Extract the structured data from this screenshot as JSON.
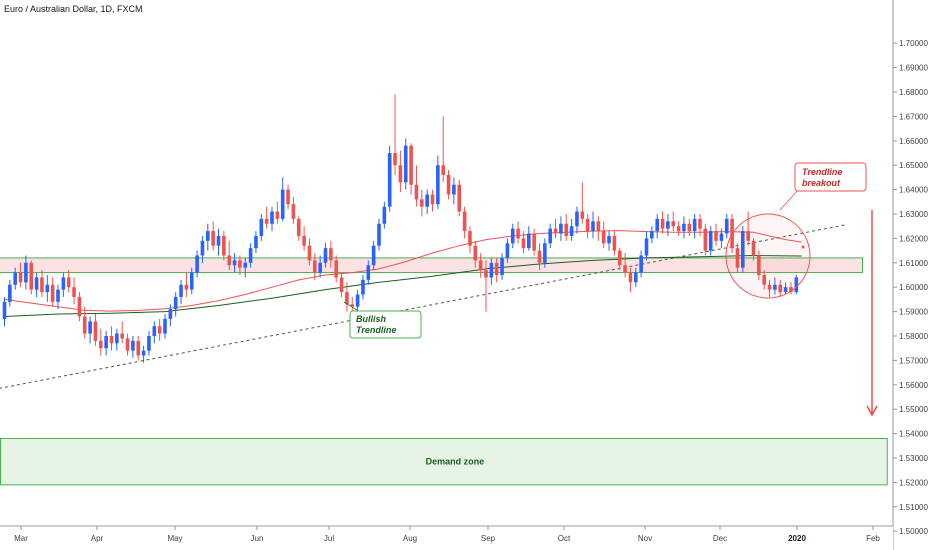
{
  "chart_data": {
    "type": "candlestick",
    "title": "Euro / Australian Dollar, 1D, FXCM",
    "ylim": [
      1.495,
      1.715
    ],
    "y_ticks": [
      "1.70000",
      "1.69000",
      "1.68000",
      "1.67000",
      "1.66000",
      "1.65000",
      "1.64000",
      "1.63000",
      "1.62000",
      "1.61000",
      "1.60000",
      "1.59000",
      "1.58000",
      "1.57000",
      "1.56000",
      "1.55000",
      "1.54000",
      "1.53000",
      "1.52000",
      "1.51000",
      "1.50000"
    ],
    "x_ticks": [
      {
        "label": "Mar",
        "bold": false
      },
      {
        "label": "Apr",
        "bold": false
      },
      {
        "label": "May",
        "bold": false
      },
      {
        "label": "Jun",
        "bold": false
      },
      {
        "label": "Jul",
        "bold": false
      },
      {
        "label": "Aug",
        "bold": false
      },
      {
        "label": "Sep",
        "bold": false
      },
      {
        "label": "Oct",
        "bold": false
      },
      {
        "label": "Nov",
        "bold": false
      },
      {
        "label": "Dec",
        "bold": false
      },
      {
        "label": "2020",
        "bold": true
      },
      {
        "label": "Feb",
        "bold": false
      }
    ],
    "colors": {
      "up": "#2962ff",
      "down": "#ef5350",
      "ma_fast": "#ef5350",
      "ma_slow": "#1b5e20",
      "trendline": "#555555",
      "resistance_fill": "#fbe3e4",
      "resistance_stroke": "#4caf50",
      "demand_fill": "#e6f4e6",
      "demand_stroke": "#4caf50",
      "arrow": "#e53935"
    },
    "candles": [
      {
        "o": 1.587,
        "h": 1.596,
        "l": 1.584,
        "c": 1.594
      },
      {
        "o": 1.594,
        "h": 1.603,
        "l": 1.592,
        "c": 1.601
      },
      {
        "o": 1.601,
        "h": 1.608,
        "l": 1.599,
        "c": 1.606
      },
      {
        "o": 1.606,
        "h": 1.61,
        "l": 1.6,
        "c": 1.602
      },
      {
        "o": 1.602,
        "h": 1.613,
        "l": 1.599,
        "c": 1.61
      },
      {
        "o": 1.61,
        "h": 1.611,
        "l": 1.597,
        "c": 1.599
      },
      {
        "o": 1.599,
        "h": 1.606,
        "l": 1.596,
        "c": 1.604
      },
      {
        "o": 1.604,
        "h": 1.607,
        "l": 1.596,
        "c": 1.598
      },
      {
        "o": 1.598,
        "h": 1.605,
        "l": 1.594,
        "c": 1.601
      },
      {
        "o": 1.601,
        "h": 1.604,
        "l": 1.592,
        "c": 1.594
      },
      {
        "o": 1.594,
        "h": 1.601,
        "l": 1.591,
        "c": 1.599
      },
      {
        "o": 1.599,
        "h": 1.606,
        "l": 1.596,
        "c": 1.604
      },
      {
        "o": 1.604,
        "h": 1.607,
        "l": 1.598,
        "c": 1.6
      },
      {
        "o": 1.6,
        "h": 1.604,
        "l": 1.593,
        "c": 1.596
      },
      {
        "o": 1.596,
        "h": 1.598,
        "l": 1.586,
        "c": 1.588
      },
      {
        "o": 1.588,
        "h": 1.592,
        "l": 1.579,
        "c": 1.581
      },
      {
        "o": 1.581,
        "h": 1.588,
        "l": 1.577,
        "c": 1.586
      },
      {
        "o": 1.586,
        "h": 1.589,
        "l": 1.576,
        "c": 1.578
      },
      {
        "o": 1.578,
        "h": 1.583,
        "l": 1.572,
        "c": 1.575
      },
      {
        "o": 1.575,
        "h": 1.582,
        "l": 1.572,
        "c": 1.58
      },
      {
        "o": 1.58,
        "h": 1.584,
        "l": 1.574,
        "c": 1.577
      },
      {
        "o": 1.577,
        "h": 1.583,
        "l": 1.574,
        "c": 1.581
      },
      {
        "o": 1.581,
        "h": 1.586,
        "l": 1.577,
        "c": 1.579
      },
      {
        "o": 1.579,
        "h": 1.581,
        "l": 1.572,
        "c": 1.574
      },
      {
        "o": 1.574,
        "h": 1.58,
        "l": 1.571,
        "c": 1.578
      },
      {
        "o": 1.578,
        "h": 1.58,
        "l": 1.57,
        "c": 1.572
      },
      {
        "o": 1.572,
        "h": 1.576,
        "l": 1.569,
        "c": 1.574
      },
      {
        "o": 1.574,
        "h": 1.582,
        "l": 1.572,
        "c": 1.58
      },
      {
        "o": 1.58,
        "h": 1.586,
        "l": 1.577,
        "c": 1.584
      },
      {
        "o": 1.584,
        "h": 1.587,
        "l": 1.578,
        "c": 1.581
      },
      {
        "o": 1.581,
        "h": 1.589,
        "l": 1.579,
        "c": 1.587
      },
      {
        "o": 1.587,
        "h": 1.593,
        "l": 1.584,
        "c": 1.591
      },
      {
        "o": 1.591,
        "h": 1.598,
        "l": 1.588,
        "c": 1.596
      },
      {
        "o": 1.596,
        "h": 1.603,
        "l": 1.593,
        "c": 1.601
      },
      {
        "o": 1.601,
        "h": 1.606,
        "l": 1.596,
        "c": 1.599
      },
      {
        "o": 1.599,
        "h": 1.608,
        "l": 1.597,
        "c": 1.606
      },
      {
        "o": 1.606,
        "h": 1.615,
        "l": 1.604,
        "c": 1.613
      },
      {
        "o": 1.613,
        "h": 1.621,
        "l": 1.61,
        "c": 1.619
      },
      {
        "o": 1.619,
        "h": 1.626,
        "l": 1.615,
        "c": 1.623
      },
      {
        "o": 1.623,
        "h": 1.627,
        "l": 1.615,
        "c": 1.617
      },
      {
        "o": 1.617,
        "h": 1.624,
        "l": 1.613,
        "c": 1.621
      },
      {
        "o": 1.621,
        "h": 1.623,
        "l": 1.611,
        "c": 1.613
      },
      {
        "o": 1.613,
        "h": 1.619,
        "l": 1.607,
        "c": 1.609
      },
      {
        "o": 1.609,
        "h": 1.614,
        "l": 1.606,
        "c": 1.611
      },
      {
        "o": 1.611,
        "h": 1.613,
        "l": 1.605,
        "c": 1.608
      },
      {
        "o": 1.608,
        "h": 1.612,
        "l": 1.604,
        "c": 1.61
      },
      {
        "o": 1.61,
        "h": 1.618,
        "l": 1.608,
        "c": 1.616
      },
      {
        "o": 1.616,
        "h": 1.623,
        "l": 1.614,
        "c": 1.621
      },
      {
        "o": 1.621,
        "h": 1.63,
        "l": 1.619,
        "c": 1.628
      },
      {
        "o": 1.628,
        "h": 1.633,
        "l": 1.624,
        "c": 1.626
      },
      {
        "o": 1.626,
        "h": 1.633,
        "l": 1.623,
        "c": 1.631
      },
      {
        "o": 1.631,
        "h": 1.635,
        "l": 1.626,
        "c": 1.628
      },
      {
        "o": 1.628,
        "h": 1.645,
        "l": 1.627,
        "c": 1.64
      },
      {
        "o": 1.64,
        "h": 1.642,
        "l": 1.632,
        "c": 1.634
      },
      {
        "o": 1.634,
        "h": 1.637,
        "l": 1.626,
        "c": 1.628
      },
      {
        "o": 1.628,
        "h": 1.629,
        "l": 1.619,
        "c": 1.621
      },
      {
        "o": 1.621,
        "h": 1.625,
        "l": 1.615,
        "c": 1.617
      },
      {
        "o": 1.617,
        "h": 1.62,
        "l": 1.609,
        "c": 1.611
      },
      {
        "o": 1.611,
        "h": 1.614,
        "l": 1.603,
        "c": 1.606
      },
      {
        "o": 1.606,
        "h": 1.613,
        "l": 1.604,
        "c": 1.61
      },
      {
        "o": 1.61,
        "h": 1.618,
        "l": 1.608,
        "c": 1.616
      },
      {
        "o": 1.616,
        "h": 1.619,
        "l": 1.608,
        "c": 1.611
      },
      {
        "o": 1.611,
        "h": 1.613,
        "l": 1.602,
        "c": 1.604
      },
      {
        "o": 1.604,
        "h": 1.606,
        "l": 1.596,
        "c": 1.598
      },
      {
        "o": 1.598,
        "h": 1.602,
        "l": 1.59,
        "c": 1.593
      },
      {
        "o": 1.593,
        "h": 1.596,
        "l": 1.589,
        "c": 1.592
      },
      {
        "o": 1.592,
        "h": 1.599,
        "l": 1.59,
        "c": 1.597
      },
      {
        "o": 1.597,
        "h": 1.605,
        "l": 1.595,
        "c": 1.603
      },
      {
        "o": 1.603,
        "h": 1.611,
        "l": 1.601,
        "c": 1.609
      },
      {
        "o": 1.609,
        "h": 1.619,
        "l": 1.607,
        "c": 1.617
      },
      {
        "o": 1.617,
        "h": 1.628,
        "l": 1.615,
        "c": 1.626
      },
      {
        "o": 1.626,
        "h": 1.635,
        "l": 1.624,
        "c": 1.633
      },
      {
        "o": 1.633,
        "h": 1.658,
        "l": 1.631,
        "c": 1.655
      },
      {
        "o": 1.655,
        "h": 1.679,
        "l": 1.646,
        "c": 1.65
      },
      {
        "o": 1.65,
        "h": 1.656,
        "l": 1.639,
        "c": 1.643
      },
      {
        "o": 1.643,
        "h": 1.661,
        "l": 1.64,
        "c": 1.658
      },
      {
        "o": 1.658,
        "h": 1.659,
        "l": 1.638,
        "c": 1.642
      },
      {
        "o": 1.642,
        "h": 1.65,
        "l": 1.633,
        "c": 1.636
      },
      {
        "o": 1.636,
        "h": 1.64,
        "l": 1.629,
        "c": 1.633
      },
      {
        "o": 1.633,
        "h": 1.64,
        "l": 1.63,
        "c": 1.638
      },
      {
        "o": 1.638,
        "h": 1.64,
        "l": 1.631,
        "c": 1.634
      },
      {
        "o": 1.634,
        "h": 1.654,
        "l": 1.632,
        "c": 1.65
      },
      {
        "o": 1.65,
        "h": 1.67,
        "l": 1.643,
        "c": 1.646
      },
      {
        "o": 1.646,
        "h": 1.648,
        "l": 1.636,
        "c": 1.638
      },
      {
        "o": 1.638,
        "h": 1.645,
        "l": 1.634,
        "c": 1.642
      },
      {
        "o": 1.642,
        "h": 1.644,
        "l": 1.629,
        "c": 1.631
      },
      {
        "o": 1.631,
        "h": 1.633,
        "l": 1.62,
        "c": 1.623
      },
      {
        "o": 1.623,
        "h": 1.625,
        "l": 1.614,
        "c": 1.617
      },
      {
        "o": 1.617,
        "h": 1.619,
        "l": 1.608,
        "c": 1.611
      },
      {
        "o": 1.611,
        "h": 1.614,
        "l": 1.604,
        "c": 1.607
      },
      {
        "o": 1.607,
        "h": 1.611,
        "l": 1.59,
        "c": 1.604
      },
      {
        "o": 1.604,
        "h": 1.612,
        "l": 1.601,
        "c": 1.61
      },
      {
        "o": 1.61,
        "h": 1.612,
        "l": 1.602,
        "c": 1.605
      },
      {
        "o": 1.605,
        "h": 1.614,
        "l": 1.603,
        "c": 1.612
      },
      {
        "o": 1.612,
        "h": 1.62,
        "l": 1.61,
        "c": 1.618
      },
      {
        "o": 1.618,
        "h": 1.626,
        "l": 1.616,
        "c": 1.624
      },
      {
        "o": 1.624,
        "h": 1.627,
        "l": 1.618,
        "c": 1.62
      },
      {
        "o": 1.62,
        "h": 1.623,
        "l": 1.614,
        "c": 1.616
      },
      {
        "o": 1.616,
        "h": 1.625,
        "l": 1.615,
        "c": 1.622
      },
      {
        "o": 1.622,
        "h": 1.624,
        "l": 1.613,
        "c": 1.615
      },
      {
        "o": 1.615,
        "h": 1.618,
        "l": 1.607,
        "c": 1.61
      },
      {
        "o": 1.61,
        "h": 1.62,
        "l": 1.608,
        "c": 1.618
      },
      {
        "o": 1.618,
        "h": 1.626,
        "l": 1.616,
        "c": 1.624
      },
      {
        "o": 1.624,
        "h": 1.628,
        "l": 1.62,
        "c": 1.622
      },
      {
        "o": 1.622,
        "h": 1.629,
        "l": 1.619,
        "c": 1.626
      },
      {
        "o": 1.626,
        "h": 1.63,
        "l": 1.619,
        "c": 1.621
      },
      {
        "o": 1.621,
        "h": 1.628,
        "l": 1.619,
        "c": 1.625
      },
      {
        "o": 1.625,
        "h": 1.633,
        "l": 1.622,
        "c": 1.631
      },
      {
        "o": 1.631,
        "h": 1.643,
        "l": 1.626,
        "c": 1.628
      },
      {
        "o": 1.628,
        "h": 1.63,
        "l": 1.62,
        "c": 1.623
      },
      {
        "o": 1.623,
        "h": 1.631,
        "l": 1.62,
        "c": 1.627
      },
      {
        "o": 1.627,
        "h": 1.629,
        "l": 1.619,
        "c": 1.623
      },
      {
        "o": 1.623,
        "h": 1.627,
        "l": 1.616,
        "c": 1.618
      },
      {
        "o": 1.618,
        "h": 1.623,
        "l": 1.615,
        "c": 1.621
      },
      {
        "o": 1.621,
        "h": 1.623,
        "l": 1.613,
        "c": 1.615
      },
      {
        "o": 1.615,
        "h": 1.616,
        "l": 1.607,
        "c": 1.609
      },
      {
        "o": 1.609,
        "h": 1.614,
        "l": 1.604,
        "c": 1.606
      },
      {
        "o": 1.606,
        "h": 1.608,
        "l": 1.598,
        "c": 1.602
      },
      {
        "o": 1.602,
        "h": 1.608,
        "l": 1.6,
        "c": 1.606
      },
      {
        "o": 1.606,
        "h": 1.615,
        "l": 1.604,
        "c": 1.613
      },
      {
        "o": 1.613,
        "h": 1.623,
        "l": 1.611,
        "c": 1.62
      },
      {
        "o": 1.62,
        "h": 1.625,
        "l": 1.618,
        "c": 1.623
      },
      {
        "o": 1.623,
        "h": 1.63,
        "l": 1.62,
        "c": 1.628
      },
      {
        "o": 1.628,
        "h": 1.631,
        "l": 1.622,
        "c": 1.624
      },
      {
        "o": 1.624,
        "h": 1.63,
        "l": 1.621,
        "c": 1.627
      },
      {
        "o": 1.627,
        "h": 1.631,
        "l": 1.623,
        "c": 1.625
      },
      {
        "o": 1.625,
        "h": 1.627,
        "l": 1.621,
        "c": 1.623
      },
      {
        "o": 1.623,
        "h": 1.629,
        "l": 1.62,
        "c": 1.626
      },
      {
        "o": 1.626,
        "h": 1.628,
        "l": 1.621,
        "c": 1.623
      },
      {
        "o": 1.623,
        "h": 1.63,
        "l": 1.62,
        "c": 1.628
      },
      {
        "o": 1.628,
        "h": 1.63,
        "l": 1.621,
        "c": 1.624
      },
      {
        "o": 1.624,
        "h": 1.626,
        "l": 1.613,
        "c": 1.615
      },
      {
        "o": 1.615,
        "h": 1.625,
        "l": 1.613,
        "c": 1.623
      },
      {
        "o": 1.623,
        "h": 1.626,
        "l": 1.617,
        "c": 1.619
      },
      {
        "o": 1.619,
        "h": 1.624,
        "l": 1.616,
        "c": 1.622
      },
      {
        "o": 1.622,
        "h": 1.63,
        "l": 1.62,
        "c": 1.628
      },
      {
        "o": 1.628,
        "h": 1.63,
        "l": 1.614,
        "c": 1.616
      },
      {
        "o": 1.616,
        "h": 1.618,
        "l": 1.606,
        "c": 1.608
      },
      {
        "o": 1.608,
        "h": 1.625,
        "l": 1.606,
        "c": 1.623
      },
      {
        "o": 1.623,
        "h": 1.631,
        "l": 1.617,
        "c": 1.619
      },
      {
        "o": 1.619,
        "h": 1.62,
        "l": 1.611,
        "c": 1.613
      },
      {
        "o": 1.613,
        "h": 1.615,
        "l": 1.603,
        "c": 1.605
      },
      {
        "o": 1.605,
        "h": 1.607,
        "l": 1.599,
        "c": 1.601
      },
      {
        "o": 1.601,
        "h": 1.603,
        "l": 1.596,
        "c": 1.599
      },
      {
        "o": 1.599,
        "h": 1.604,
        "l": 1.597,
        "c": 1.601
      },
      {
        "o": 1.601,
        "h": 1.603,
        "l": 1.596,
        "c": 1.598
      },
      {
        "o": 1.598,
        "h": 1.602,
        "l": 1.597,
        "c": 1.6
      },
      {
        "o": 1.6,
        "h": 1.602,
        "l": 1.597,
        "c": 1.598
      },
      {
        "o": 1.598,
        "h": 1.605,
        "l": 1.597,
        "c": 1.604
      }
    ],
    "ma_fast": [
      [
        0,
        1.595
      ],
      [
        5,
        1.5935
      ],
      [
        10,
        1.592
      ],
      [
        15,
        1.5905
      ],
      [
        20,
        1.5902
      ],
      [
        25,
        1.5905
      ],
      [
        30,
        1.5912
      ],
      [
        35,
        1.5925
      ],
      [
        40,
        1.5945
      ],
      [
        45,
        1.597
      ],
      [
        50,
        1.6
      ],
      [
        55,
        1.603
      ],
      [
        60,
        1.605
      ],
      [
        65,
        1.606
      ],
      [
        70,
        1.6075
      ],
      [
        75,
        1.6105
      ],
      [
        80,
        1.614
      ],
      [
        85,
        1.617
      ],
      [
        90,
        1.6195
      ],
      [
        95,
        1.621
      ],
      [
        100,
        1.622
      ],
      [
        105,
        1.6225
      ],
      [
        110,
        1.623
      ],
      [
        115,
        1.6232
      ],
      [
        120,
        1.6228
      ],
      [
        125,
        1.6225
      ],
      [
        130,
        1.6225
      ],
      [
        135,
        1.6228
      ],
      [
        140,
        1.6225
      ],
      [
        143,
        1.621
      ],
      [
        146,
        1.6195
      ],
      [
        149,
        1.6185
      ]
    ],
    "ma_slow": [
      [
        0,
        1.588
      ],
      [
        10,
        1.589
      ],
      [
        20,
        1.5893
      ],
      [
        30,
        1.59
      ],
      [
        40,
        1.5925
      ],
      [
        50,
        1.5955
      ],
      [
        60,
        1.599
      ],
      [
        70,
        1.602
      ],
      [
        80,
        1.6045
      ],
      [
        90,
        1.6075
      ],
      [
        100,
        1.6095
      ],
      [
        110,
        1.611
      ],
      [
        120,
        1.612
      ],
      [
        130,
        1.6125
      ],
      [
        140,
        1.613
      ],
      [
        149,
        1.6128
      ]
    ],
    "trendline": [
      [
        -1,
        1.5585
      ],
      [
        157,
        1.6255
      ]
    ],
    "resistance_zone": {
      "start": -1,
      "end": 160,
      "low": 1.606,
      "high": 1.612
    },
    "demand_zone": {
      "start": -1,
      "end": 165,
      "low": 1.519,
      "high": 1.538
    },
    "annotations": {
      "bullish": {
        "line1": "Bullish",
        "line2": "Trendline",
        "color": "#1b5e20"
      },
      "breakout": {
        "line1": "Trendline",
        "line2": "breakout",
        "color": "#c62828"
      },
      "demand": {
        "label": "Demand zone"
      }
    }
  }
}
